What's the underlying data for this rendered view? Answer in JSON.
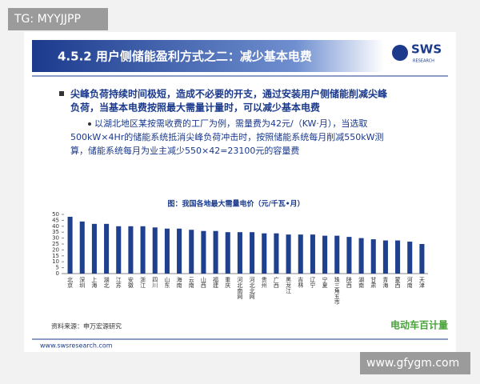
{
  "watermark_top": "TG: MYYJJPP",
  "header": {
    "title": "4.5.2 用户侧储能盈利方式之二：减少基本电费",
    "logo": "SWS",
    "logo_sub": "RESEARCH"
  },
  "bullet": {
    "lines": [
      "尖峰负荷持续时间极短，造成不必要的开支，通过安装用户侧储能削减尖峰",
      "负荷，当基本电费按照最大需量计量时，可以减少基本电费"
    ]
  },
  "sub_bullet": {
    "lines": [
      "以湖北地区某按需收费的工厂为例，需量费为42元/（KW·月），当选取",
      "500kW×4Hr的储能系统抵消尖峰负荷冲击时，按照储能系统每月削减550kW测",
      "算，储能系统每月为业主减少550×42=23100元的容量费"
    ]
  },
  "chart": {
    "type": "bar",
    "title": "图：我国各地最大需量电价（元/千瓦•月）",
    "color": "#1f3f8f",
    "categories": [
      "北京",
      "深圳",
      "上海",
      "湖北",
      "江苏",
      "安徽",
      "浙江",
      "四川",
      "山东",
      "海南",
      "云南",
      "山西",
      "福建",
      "重庆",
      "河北南网",
      "河北北网",
      "贵州",
      "广西",
      "黑龙江",
      "吉林",
      "辽宁",
      "宁夏",
      "珠三角五市",
      "陕西",
      "湖南",
      "甘肃",
      "青海",
      "蒙西",
      "河南",
      "天津"
    ],
    "values": [
      48,
      44,
      42,
      42,
      40,
      40,
      40,
      39,
      38,
      38,
      37,
      36,
      36,
      35,
      35,
      35,
      34,
      34,
      33,
      33,
      33,
      32,
      32,
      31,
      30,
      29,
      28,
      28,
      27,
      25
    ],
    "ylim": [
      0,
      50
    ],
    "yticks": [
      0,
      5,
      10,
      15,
      20,
      25,
      30,
      35,
      40,
      45,
      50
    ]
  },
  "source": "资料来源：申万宏源研究",
  "footer": "www.swsresearch.com",
  "brand": "电动车百计量",
  "watermark_bottom": "www.gfygm.com"
}
